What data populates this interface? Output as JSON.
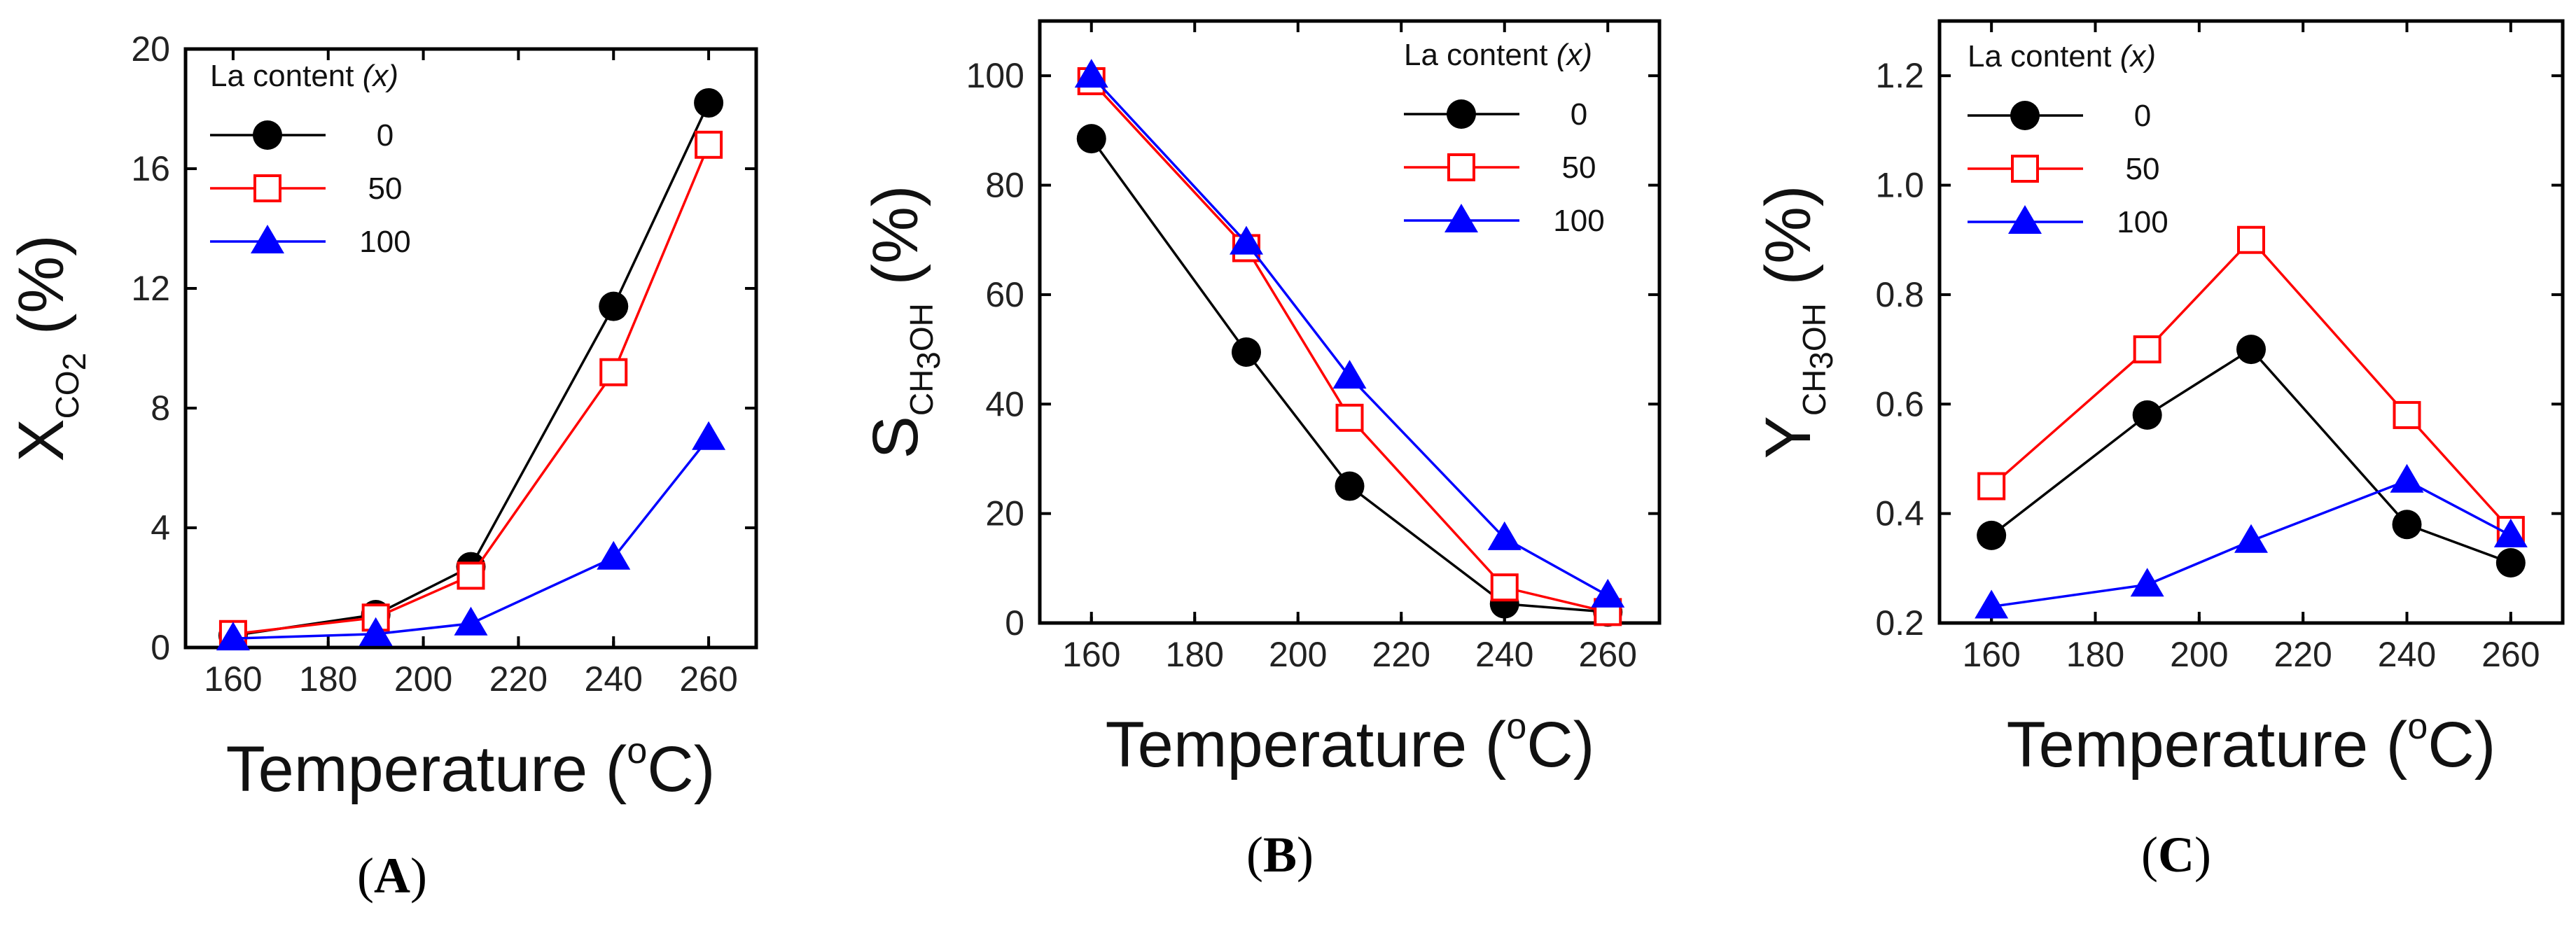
{
  "chart_data": [
    {
      "type": "line",
      "panel": "A",
      "panel_label_open": "(",
      "panel_label_letter": "A",
      "panel_label_close": ")",
      "xlabel": "Temperature (°C)",
      "ylabel_main": "X",
      "ylabel_sub": "CO",
      "ylabel_sub2": "2",
      "ylabel_unit": "(%)",
      "xlim": [
        150,
        270
      ],
      "ylim": [
        0,
        20
      ],
      "xticks": [
        160,
        180,
        200,
        220,
        240,
        260
      ],
      "yticks": [
        0,
        4,
        8,
        12,
        16,
        20
      ],
      "legend_title": "La content",
      "legend_var": "(x)",
      "legend_position": "top-left",
      "series": [
        {
          "name": "0",
          "color": "#000000",
          "marker": "circle",
          "x": [
            160,
            190,
            210,
            240,
            260
          ],
          "values": [
            0.4,
            1.1,
            2.7,
            11.4,
            18.2
          ]
        },
        {
          "name": "50",
          "color": "#ff0000",
          "marker": "square-open",
          "x": [
            160,
            190,
            210,
            240,
            260
          ],
          "values": [
            0.45,
            1.0,
            2.4,
            9.2,
            16.8
          ]
        },
        {
          "name": "100",
          "color": "#0000ff",
          "marker": "triangle",
          "x": [
            160,
            190,
            210,
            240,
            260
          ],
          "values": [
            0.3,
            0.45,
            0.8,
            3.0,
            7.0
          ]
        }
      ]
    },
    {
      "type": "line",
      "panel": "B",
      "panel_label_open": "(",
      "panel_label_letter": "B",
      "panel_label_close": ")",
      "xlabel": "Temperature (°C)",
      "ylabel_main": "S",
      "ylabel_sub": "CH",
      "ylabel_sub2": "3",
      "ylabel_sub3": "OH",
      "ylabel_unit": "(%)",
      "xlim": [
        150,
        270
      ],
      "ylim": [
        0,
        110
      ],
      "xticks": [
        160,
        180,
        200,
        220,
        240,
        260
      ],
      "yticks": [
        0,
        20,
        40,
        60,
        80,
        100
      ],
      "legend_title": "La content",
      "legend_var": "(x)",
      "legend_position": "top-right",
      "series": [
        {
          "name": "0",
          "color": "#000000",
          "marker": "circle",
          "x": [
            160,
            190,
            210,
            240,
            260
          ],
          "values": [
            88.5,
            49.5,
            25,
            3.5,
            2
          ]
        },
        {
          "name": "50",
          "color": "#ff0000",
          "marker": "square-open",
          "x": [
            160,
            190,
            210,
            240,
            260
          ],
          "values": [
            99,
            68.5,
            37.5,
            6.5,
            2
          ]
        },
        {
          "name": "100",
          "color": "#0000ff",
          "marker": "triangle",
          "x": [
            160,
            190,
            210,
            240,
            260
          ],
          "values": [
            100,
            69.5,
            45,
            15.5,
            5
          ]
        }
      ]
    },
    {
      "type": "line",
      "panel": "C",
      "panel_label_open": "(",
      "panel_label_letter": "C",
      "panel_label_close": ")",
      "xlabel": "Temperature (°C)",
      "ylabel_main": "Y",
      "ylabel_sub": "CH",
      "ylabel_sub2": "3",
      "ylabel_sub3": "OH",
      "ylabel_unit": "(%)",
      "xlim": [
        150,
        270
      ],
      "ylim": [
        0.2,
        1.3
      ],
      "xticks": [
        160,
        180,
        200,
        220,
        240,
        260
      ],
      "yticks": [
        0.2,
        0.4,
        0.6,
        0.8,
        1.0,
        1.2
      ],
      "ytick_labels": [
        "0.2",
        "0.4",
        "0.6",
        "0.8",
        "1.0",
        "1.2"
      ],
      "legend_title": "La content",
      "legend_var": "(x)",
      "legend_position": "top-left",
      "series": [
        {
          "name": "0",
          "color": "#000000",
          "marker": "circle",
          "x": [
            160,
            190,
            210,
            240,
            260
          ],
          "values": [
            0.36,
            0.58,
            0.7,
            0.38,
            0.31
          ]
        },
        {
          "name": "50",
          "color": "#ff0000",
          "marker": "square-open",
          "x": [
            160,
            190,
            210,
            240,
            260
          ],
          "values": [
            0.45,
            0.7,
            0.9,
            0.58,
            0.37
          ]
        },
        {
          "name": "100",
          "color": "#0000ff",
          "marker": "triangle",
          "x": [
            160,
            190,
            210,
            240,
            260
          ],
          "values": [
            0.23,
            0.27,
            0.35,
            0.46,
            0.36
          ]
        }
      ]
    }
  ]
}
